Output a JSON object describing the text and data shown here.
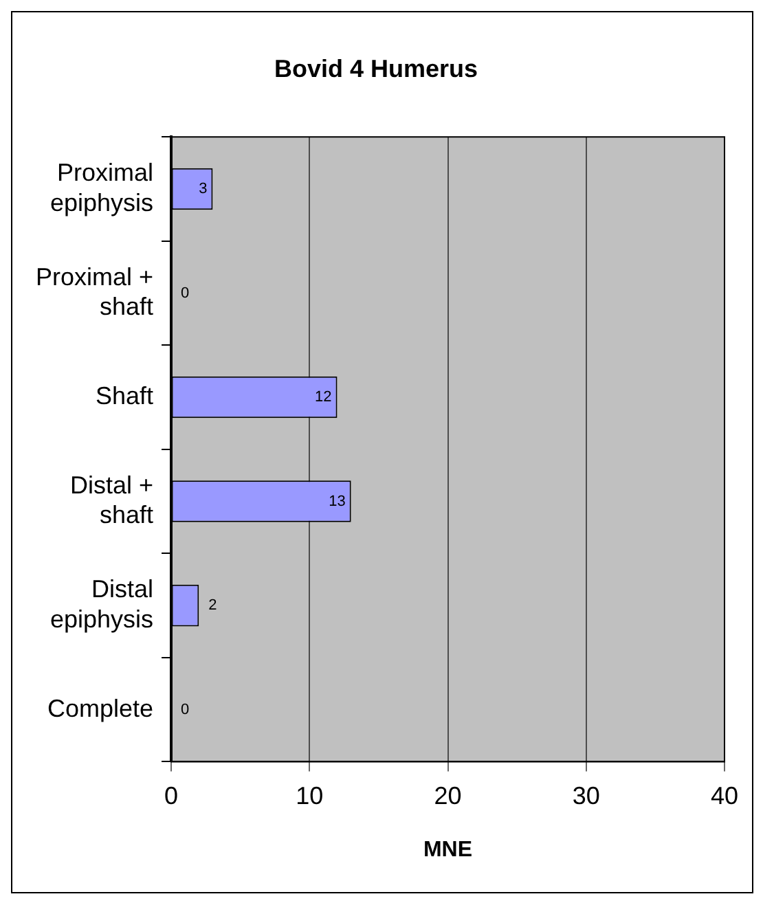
{
  "chart_data": {
    "type": "bar",
    "orientation": "horizontal",
    "title": "Bovid 4 Humerus",
    "xlabel": "MNE",
    "categories": [
      "Proximal epiphysis",
      "Proximal + shaft",
      "Shaft",
      "Distal + shaft",
      "Distal epiphysis",
      "Complete"
    ],
    "values": [
      3,
      0,
      12,
      13,
      2,
      0
    ],
    "color": "#9999ff",
    "xlim": [
      0,
      40
    ],
    "xticks": [
      0,
      10,
      20,
      30,
      40
    ],
    "grid": "x",
    "data_labels": true,
    "legend": false
  }
}
